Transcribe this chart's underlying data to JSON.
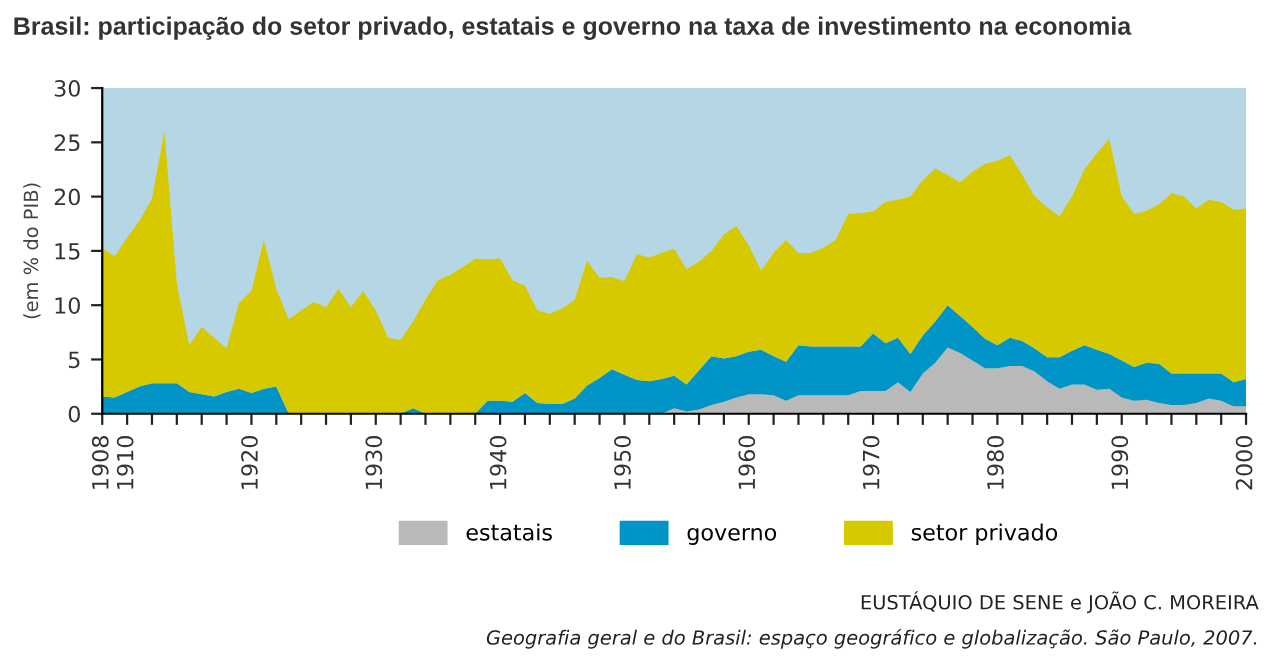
{
  "chart_data": {
    "type": "area",
    "stacked": true,
    "title": "Brasil: participação do setor privado, estatais e governo na taxa de investimento na economia",
    "ylabel": "(em % do PIB)",
    "x": [
      1908,
      1909,
      1910,
      1911,
      1912,
      1913,
      1914,
      1915,
      1916,
      1917,
      1918,
      1919,
      1920,
      1921,
      1922,
      1923,
      1924,
      1925,
      1926,
      1927,
      1928,
      1929,
      1930,
      1931,
      1932,
      1933,
      1934,
      1935,
      1936,
      1937,
      1938,
      1939,
      1940,
      1941,
      1942,
      1943,
      1944,
      1945,
      1946,
      1947,
      1948,
      1949,
      1950,
      1951,
      1952,
      1953,
      1954,
      1955,
      1956,
      1957,
      1958,
      1959,
      1960,
      1961,
      1962,
      1963,
      1964,
      1965,
      1966,
      1967,
      1968,
      1969,
      1970,
      1971,
      1972,
      1973,
      1974,
      1975,
      1976,
      1977,
      1978,
      1979,
      1980,
      1981,
      1982,
      1983,
      1984,
      1985,
      1986,
      1987,
      1988,
      1989,
      1990,
      1991,
      1992,
      1993,
      1994,
      1995,
      1996,
      1997,
      1998,
      1999,
      2000
    ],
    "series": [
      {
        "name": "estatais",
        "color": "#b9b9b9",
        "values": [
          0,
          0,
          0,
          0,
          0,
          0,
          0,
          0,
          0,
          0,
          0,
          0,
          0,
          0,
          0,
          0,
          0,
          0,
          0,
          0,
          0,
          0,
          0,
          0,
          0,
          0,
          0,
          0,
          0,
          0,
          0,
          0,
          0,
          0,
          0,
          0,
          0,
          0,
          0,
          0,
          0,
          0,
          0,
          0,
          0,
          0,
          0.5,
          0.2,
          0.4,
          0.8,
          1.1,
          1.5,
          1.8,
          1.8,
          1.7,
          1.2,
          1.7,
          1.7,
          1.7,
          1.7,
          1.7,
          2.1,
          2.1,
          2.1,
          2.9,
          2.0,
          3.7,
          4.7,
          6.1,
          5.6,
          4.9,
          4.2,
          4.2,
          4.4,
          4.4,
          3.9,
          3.0,
          2.3,
          2.7,
          2.7,
          2.2,
          2.3,
          1.5,
          1.2,
          1.3,
          1.0,
          0.8,
          0.8,
          1.0,
          1.4,
          1.2,
          0.7,
          0.7
        ]
      },
      {
        "name": "governo",
        "color": "#0095c6",
        "values": [
          1.6,
          1.5,
          2.0,
          2.5,
          2.8,
          2.8,
          2.8,
          2.0,
          1.8,
          1.6,
          2.0,
          2.3,
          1.9,
          2.3,
          2.5,
          0,
          0,
          0,
          0,
          0,
          0,
          0,
          0,
          0,
          0,
          0.5,
          0,
          0,
          0,
          0,
          0,
          1.2,
          1.2,
          1.1,
          1.9,
          1.0,
          0.9,
          0.9,
          1.4,
          2.6,
          3.3,
          4.1,
          3.6,
          3.1,
          3.0,
          3.2,
          3.0,
          2.5,
          3.6,
          4.5,
          4.0,
          3.8,
          3.9,
          4.1,
          3.6,
          3.6,
          4.6,
          4.5,
          4.5,
          4.5,
          4.5,
          4.1,
          5.3,
          4.4,
          4.1,
          3.5,
          3.5,
          3.8,
          3.9,
          3.4,
          3.1,
          2.7,
          2.1,
          2.6,
          2.3,
          2.1,
          2.2,
          2.9,
          3.1,
          3.6,
          3.7,
          3.2,
          3.4,
          3.1,
          3.4,
          3.6,
          2.9,
          2.9,
          2.7,
          2.3,
          2.5,
          2.2,
          2.5
        ]
      },
      {
        "name": "setor privado",
        "color": "#d6c900",
        "values": [
          13.7,
          13.0,
          14.2,
          15.3,
          17.0,
          23.2,
          9.2,
          4.3,
          6.2,
          5.4,
          4.0,
          7.9,
          9.4,
          13.7,
          9.0,
          8.7,
          9.5,
          10.3,
          9.8,
          11.5,
          9.8,
          11.3,
          9.5,
          7.0,
          6.8,
          8.0,
          10.5,
          12.3,
          12.8,
          13.5,
          14.3,
          13.0,
          13.1,
          11.2,
          9.9,
          8.5,
          8.3,
          8.8,
          9.1,
          11.5,
          9.2,
          8.5,
          8.6,
          11.6,
          11.4,
          11.6,
          11.7,
          10.6,
          10.0,
          9.7,
          11.4,
          12.0,
          9.8,
          7.3,
          9.5,
          11.2,
          8.5,
          8.6,
          9.1,
          9.8,
          12.2,
          12.3,
          11.2,
          13.0,
          12.7,
          14.5,
          14.3,
          14.1,
          12.0,
          12.3,
          14.3,
          16.1,
          17.0,
          16.8,
          15.3,
          14.0,
          13.8,
          13.0,
          14.2,
          16.2,
          18.1,
          19.8,
          15.1,
          14.1,
          14.0,
          14.7,
          16.6,
          16.3,
          15.2,
          16.0,
          15.8,
          15.9,
          15.7
        ]
      }
    ],
    "xlim": [
      1908,
      2000
    ],
    "xticks": [
      1908,
      1910,
      {
        "value": 1912,
        "label": null
      },
      {
        "value": 1914,
        "label": null
      },
      {
        "value": 1916,
        "label": null
      },
      {
        "value": 1918,
        "label": null
      },
      1920,
      {
        "value": 1922,
        "label": null
      },
      {
        "value": 1924,
        "label": null
      },
      {
        "value": 1926,
        "label": null
      },
      {
        "value": 1928,
        "label": null
      },
      1930,
      {
        "value": 1932,
        "label": null
      },
      {
        "value": 1934,
        "label": null
      },
      {
        "value": 1936,
        "label": null
      },
      {
        "value": 1938,
        "label": null
      },
      1940,
      {
        "value": 1942,
        "label": null
      },
      {
        "value": 1944,
        "label": null
      },
      {
        "value": 1946,
        "label": null
      },
      {
        "value": 1948,
        "label": null
      },
      1950,
      {
        "value": 1952,
        "label": null
      },
      {
        "value": 1954,
        "label": null
      },
      {
        "value": 1956,
        "label": null
      },
      {
        "value": 1958,
        "label": null
      },
      1960,
      {
        "value": 1962,
        "label": null
      },
      {
        "value": 1964,
        "label": null
      },
      {
        "value": 1966,
        "label": null
      },
      {
        "value": 1968,
        "label": null
      },
      1970,
      {
        "value": 1972,
        "label": null
      },
      {
        "value": 1974,
        "label": null
      },
      {
        "value": 1976,
        "label": null
      },
      {
        "value": 1978,
        "label": null
      },
      1980,
      {
        "value": 1982,
        "label": null
      },
      {
        "value": 1984,
        "label": null
      },
      {
        "value": 1986,
        "label": null
      },
      {
        "value": 1988,
        "label": null
      },
      1990,
      {
        "value": 1992,
        "label": null
      },
      {
        "value": 1994,
        "label": null
      },
      {
        "value": 1996,
        "label": null
      },
      {
        "value": 1998,
        "label": null
      },
      2000
    ],
    "ylim": [
      0,
      30
    ],
    "yticks": [
      0,
      5,
      10,
      15,
      20,
      25,
      30
    ],
    "legend": "bottom",
    "annotations": [
      "EUSTÁQUIO DE SENE e JOÃO C. MOREIRA",
      "Geografia geral e do Brasil: espaço geográfico e globalização. São Paulo, 2007."
    ]
  }
}
